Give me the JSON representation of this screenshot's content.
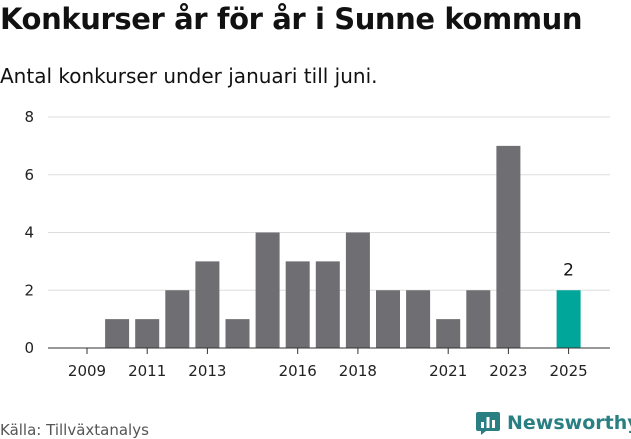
{
  "title": "Konkurser år för år i Sunne kommun",
  "subtitle": "Antal konkurser under januari till juni.",
  "source": "Källa: Tillväxtanalys",
  "brand": {
    "name": "Newsworthy",
    "icon": "bar-chart-logo-icon",
    "color": "#2a7f82"
  },
  "chart_data": {
    "type": "bar",
    "categories": [
      "2009",
      "2010",
      "2011",
      "2012",
      "2013",
      "2014",
      "2015",
      "2016",
      "2017",
      "2018",
      "2019",
      "2020",
      "2021",
      "2022",
      "2023",
      "2024",
      "2025"
    ],
    "values": [
      0,
      1,
      1,
      2,
      3,
      1,
      4,
      3,
      3,
      4,
      2,
      2,
      1,
      2,
      7,
      null,
      2
    ],
    "x_tick_labels": [
      "2009",
      "2011",
      "2013",
      "2016",
      "2018",
      "2021",
      "2023",
      "2025"
    ],
    "y_ticks": [
      0,
      2,
      4,
      6,
      8
    ],
    "ylim": [
      0,
      8
    ],
    "grid": true,
    "colors": {
      "default": "#6f6e73",
      "highlight": "#00a69a"
    },
    "highlight_category": "2025",
    "data_labels": [
      {
        "category": "2025",
        "value": 2
      }
    ]
  }
}
